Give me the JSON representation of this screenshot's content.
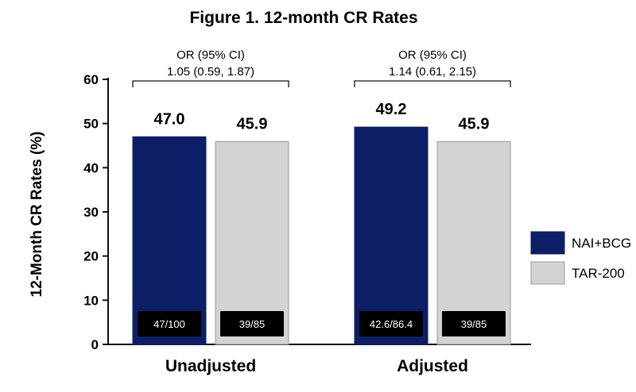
{
  "chart_data": {
    "type": "bar",
    "title": "Figure 1. 12-month CR Rates",
    "ylabel": "12-Month CR Rates (%)",
    "xlabel": "",
    "ylim": [
      0,
      60
    ],
    "yticks": [
      0,
      10,
      20,
      30,
      40,
      50,
      60
    ],
    "categories": [
      "Unadjusted",
      "Adjusted"
    ],
    "series": [
      {
        "name": "NAI+BCG",
        "color": "#0c1f66",
        "values": [
          47.0,
          49.2
        ],
        "value_labels": [
          "47.0",
          "49.2"
        ],
        "counts": [
          "47/100",
          "42.6/86.4"
        ]
      },
      {
        "name": "TAR-200",
        "color": "#d3d3d3",
        "values": [
          45.9,
          45.9
        ],
        "value_labels": [
          "45.9",
          "45.9"
        ],
        "counts": [
          "39/85",
          "39/85"
        ]
      }
    ],
    "annotations": [
      {
        "line1": "OR (95% CI)",
        "line2": "1.05 (0.59, 1.87)"
      },
      {
        "line1": "OR (95% CI)",
        "line2": "1.14 (0.61, 2.15)"
      }
    ],
    "legend_position": "right",
    "grid": false
  }
}
